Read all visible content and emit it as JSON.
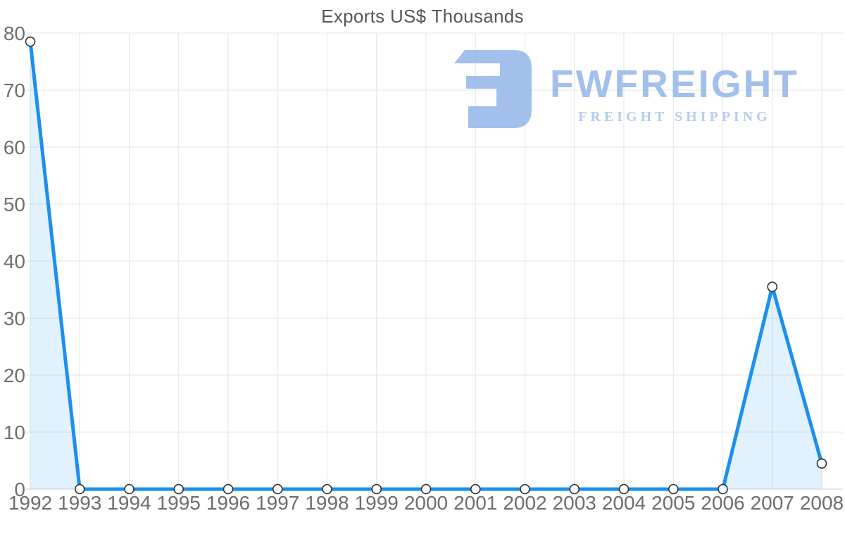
{
  "chart_data": {
    "type": "area",
    "title": "Exports US$ Thousands",
    "x": [
      1992,
      1993,
      1994,
      1995,
      1996,
      1997,
      1998,
      1999,
      2000,
      2001,
      2002,
      2003,
      2004,
      2005,
      2006,
      2007,
      2008
    ],
    "series": [
      {
        "name": "Exports US$ Thousands",
        "values": [
          78.5,
          0,
          0,
          0,
          0,
          0,
          0,
          0,
          0,
          0,
          0,
          0,
          0,
          0,
          0,
          35.5,
          4.5
        ]
      }
    ],
    "xlabel": "",
    "ylabel": "",
    "ylim": [
      0,
      80
    ],
    "y_ticks": [
      0,
      10,
      20,
      30,
      40,
      50,
      60,
      70,
      80
    ],
    "grid": "both",
    "legend": false,
    "line_color": "#1b90f0",
    "fill_color": "rgba(27,144,240,0.13)",
    "grid_color": "#e6e6e6",
    "axis_color": "#cfcfcf",
    "tick_color": "#6e6e6e",
    "marker_fill": "#ffffff",
    "marker_stroke": "#2f2f2f"
  },
  "watermark": {
    "brand": "FWFREIGHT",
    "tagline": "FREIGHT SHIPPING",
    "color": "#a9c4ee"
  }
}
